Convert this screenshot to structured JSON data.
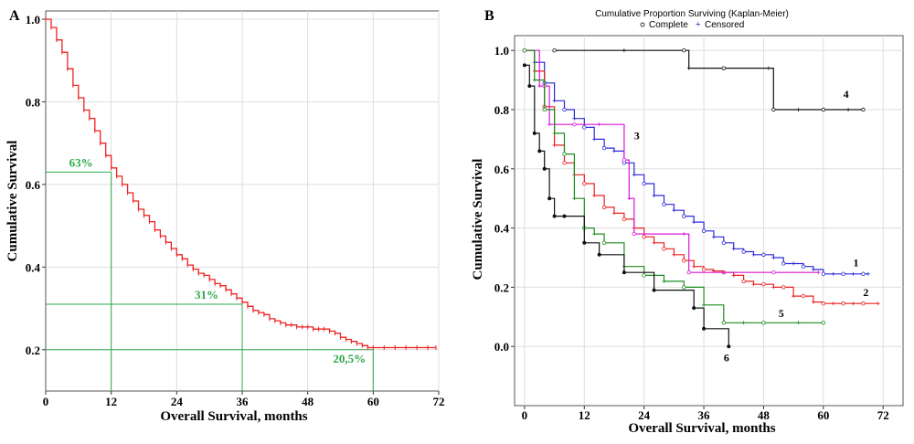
{
  "chart_data": [
    {
      "panel": "A",
      "type": "line",
      "xlabel": "Overall Survival, months",
      "ylabel": "Cumulative Survival",
      "xlim": [
        0,
        72
      ],
      "ylim": [
        0.1,
        1.02
      ],
      "xticks": [
        0,
        12,
        24,
        36,
        48,
        60,
        72
      ],
      "yticks": [
        0.2,
        0.4,
        0.6,
        0.8,
        1.0
      ],
      "ytick_labels": [
        "0.2",
        "0.4",
        "0.6",
        "0.8",
        "1.0"
      ],
      "grid": true,
      "series": [
        {
          "color": "#ee2222",
          "x": [
            0,
            1,
            2,
            3,
            4,
            5,
            6,
            7,
            8,
            9,
            10,
            11,
            12,
            13,
            14,
            15,
            16,
            17,
            18,
            19,
            20,
            21,
            22,
            23,
            24,
            25,
            26,
            27,
            28,
            29,
            30,
            31,
            32,
            33,
            34,
            35,
            36,
            37,
            38,
            39,
            40,
            41,
            42,
            43,
            44,
            45,
            46,
            47,
            48,
            49,
            50,
            51,
            52,
            53,
            54,
            55,
            56,
            57,
            58,
            59,
            60,
            62,
            64,
            66,
            68,
            70,
            71.5
          ],
          "y": [
            1.0,
            0.98,
            0.95,
            0.92,
            0.88,
            0.84,
            0.81,
            0.78,
            0.76,
            0.73,
            0.7,
            0.67,
            0.64,
            0.62,
            0.6,
            0.58,
            0.56,
            0.54,
            0.525,
            0.51,
            0.49,
            0.475,
            0.46,
            0.445,
            0.43,
            0.42,
            0.405,
            0.395,
            0.385,
            0.38,
            0.37,
            0.36,
            0.355,
            0.345,
            0.335,
            0.325,
            0.315,
            0.305,
            0.295,
            0.29,
            0.285,
            0.275,
            0.27,
            0.265,
            0.26,
            0.26,
            0.255,
            0.255,
            0.255,
            0.25,
            0.25,
            0.25,
            0.245,
            0.24,
            0.23,
            0.225,
            0.22,
            0.215,
            0.21,
            0.205,
            0.205,
            0.205,
            0.205,
            0.205,
            0.205,
            0.205,
            0.205
          ]
        }
      ],
      "reference_lines": [
        {
          "x": 12,
          "y": 0.63,
          "label": "63%"
        },
        {
          "x": 36,
          "y": 0.31,
          "label": "31%"
        },
        {
          "x": 60,
          "y": 0.2,
          "label": "20,5%"
        }
      ]
    },
    {
      "panel": "B",
      "type": "line",
      "title": "Cumulative Proportion Surviving (Kaplan-Meier)",
      "legend": [
        {
          "label": "Complete",
          "marker": "circle"
        },
        {
          "label": "Censored",
          "marker": "plus"
        }
      ],
      "xlabel": "Overall Survival, months",
      "ylabel": "Cumulative Survival",
      "xlim": [
        -2,
        76
      ],
      "ylim": [
        -0.2,
        1.05
      ],
      "xticks": [
        0,
        12,
        24,
        36,
        48,
        60,
        72
      ],
      "yticks": [
        0.0,
        0.2,
        0.4,
        0.6,
        0.8,
        1.0
      ],
      "ytick_labels": [
        "0.0",
        "0.2",
        "0.4",
        "0.6",
        "0.8",
        "1.0"
      ],
      "grid": true,
      "series": [
        {
          "name": "1",
          "color": "#2a2ad8",
          "x": [
            0,
            2,
            4,
            6,
            8,
            10,
            12,
            14,
            16,
            18,
            20,
            22,
            24,
            26,
            28,
            30,
            32,
            34,
            36,
            38,
            40,
            42,
            44,
            46,
            48,
            50,
            52,
            54,
            56,
            58,
            60,
            62,
            64,
            66,
            68,
            69
          ],
          "y": [
            1.0,
            0.96,
            0.89,
            0.83,
            0.8,
            0.77,
            0.74,
            0.7,
            0.67,
            0.66,
            0.62,
            0.58,
            0.55,
            0.51,
            0.48,
            0.46,
            0.44,
            0.42,
            0.39,
            0.37,
            0.35,
            0.33,
            0.32,
            0.31,
            0.31,
            0.3,
            0.28,
            0.28,
            0.27,
            0.26,
            0.245,
            0.245,
            0.245,
            0.245,
            0.245,
            0.245
          ]
        },
        {
          "name": "2",
          "color": "#e82020",
          "x": [
            0,
            2,
            4,
            6,
            8,
            10,
            12,
            14,
            16,
            18,
            20,
            22,
            24,
            26,
            28,
            30,
            32,
            34,
            36,
            38,
            40,
            42,
            44,
            46,
            48,
            50,
            52,
            54,
            56,
            58,
            60,
            62,
            64,
            66,
            68,
            71
          ],
          "y": [
            1.0,
            0.93,
            0.81,
            0.68,
            0.62,
            0.58,
            0.55,
            0.51,
            0.47,
            0.45,
            0.43,
            0.4,
            0.37,
            0.35,
            0.33,
            0.31,
            0.29,
            0.27,
            0.26,
            0.255,
            0.25,
            0.24,
            0.22,
            0.21,
            0.21,
            0.2,
            0.2,
            0.17,
            0.17,
            0.15,
            0.145,
            0.145,
            0.145,
            0.145,
            0.145,
            0.145
          ]
        },
        {
          "name": "3",
          "color": "#d818d8",
          "x": [
            0,
            3,
            4,
            5,
            10,
            15,
            20,
            21,
            22,
            32,
            33,
            40,
            50,
            59
          ],
          "y": [
            1.0,
            0.88,
            0.88,
            0.75,
            0.75,
            0.75,
            0.63,
            0.5,
            0.38,
            0.38,
            0.25,
            0.25,
            0.25,
            0.25
          ]
        },
        {
          "name": "4",
          "color": "#111111",
          "x": [
            6,
            20,
            32,
            33,
            40,
            49,
            50,
            55,
            60,
            65,
            68
          ],
          "y": [
            1.0,
            1.0,
            1.0,
            0.94,
            0.94,
            0.94,
            0.8,
            0.8,
            0.8,
            0.8,
            0.8
          ]
        },
        {
          "name": "5",
          "color": "#1c8c1c",
          "x": [
            0,
            2,
            4,
            6,
            8,
            10,
            12,
            14,
            16,
            20,
            24,
            28,
            32,
            36,
            40,
            44,
            48,
            55,
            60
          ],
          "y": [
            1.0,
            0.9,
            0.8,
            0.72,
            0.65,
            0.5,
            0.4,
            0.38,
            0.35,
            0.27,
            0.24,
            0.22,
            0.2,
            0.14,
            0.08,
            0.08,
            0.08,
            0.08,
            0.08
          ]
        },
        {
          "name": "6",
          "color": "#111111",
          "x": [
            0,
            1,
            2,
            3,
            4,
            5,
            6,
            8,
            12,
            15,
            20,
            26,
            34,
            36,
            41
          ],
          "y": [
            0.95,
            0.88,
            0.72,
            0.66,
            0.6,
            0.5,
            0.44,
            0.44,
            0.35,
            0.31,
            0.25,
            0.19,
            0.13,
            0.06,
            0.0
          ]
        }
      ]
    }
  ],
  "panels": {
    "a": {
      "letter": "A"
    },
    "b": {
      "letter": "B"
    }
  }
}
